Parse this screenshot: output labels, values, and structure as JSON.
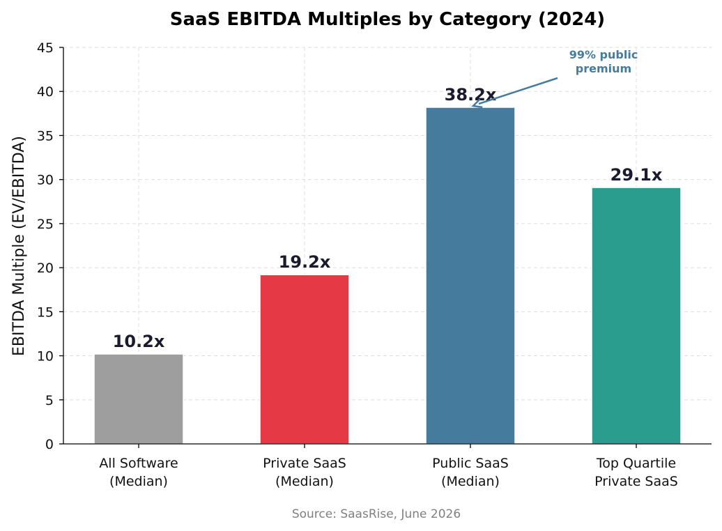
{
  "chart_data": {
    "type": "bar",
    "title": "SaaS EBITDA Multiples by Category (2024)",
    "xlabel": "",
    "ylabel": "EBITDA Multiple (EV/EBITDA)",
    "ylim": [
      0,
      45
    ],
    "yticks": [
      0,
      5,
      10,
      15,
      20,
      25,
      30,
      35,
      40,
      45
    ],
    "categories": [
      [
        "All Software",
        "(Median)"
      ],
      [
        "Private SaaS",
        "(Median)"
      ],
      [
        "Public SaaS",
        "(Median)"
      ],
      [
        "Top Quartile",
        "Private SaaS"
      ]
    ],
    "values": [
      10.2,
      19.2,
      38.2,
      29.1
    ],
    "value_labels": [
      "10.2x",
      "19.2x",
      "38.2x",
      "29.1x"
    ],
    "colors": [
      "#9e9e9e",
      "#e63946",
      "#457b9d",
      "#2a9d8f"
    ],
    "grid": true,
    "annotation": {
      "text": [
        "99% public",
        "premium"
      ],
      "target_category_index": 2,
      "color": "#457b9d"
    },
    "source": "Source: SaasRise, June 2026"
  }
}
